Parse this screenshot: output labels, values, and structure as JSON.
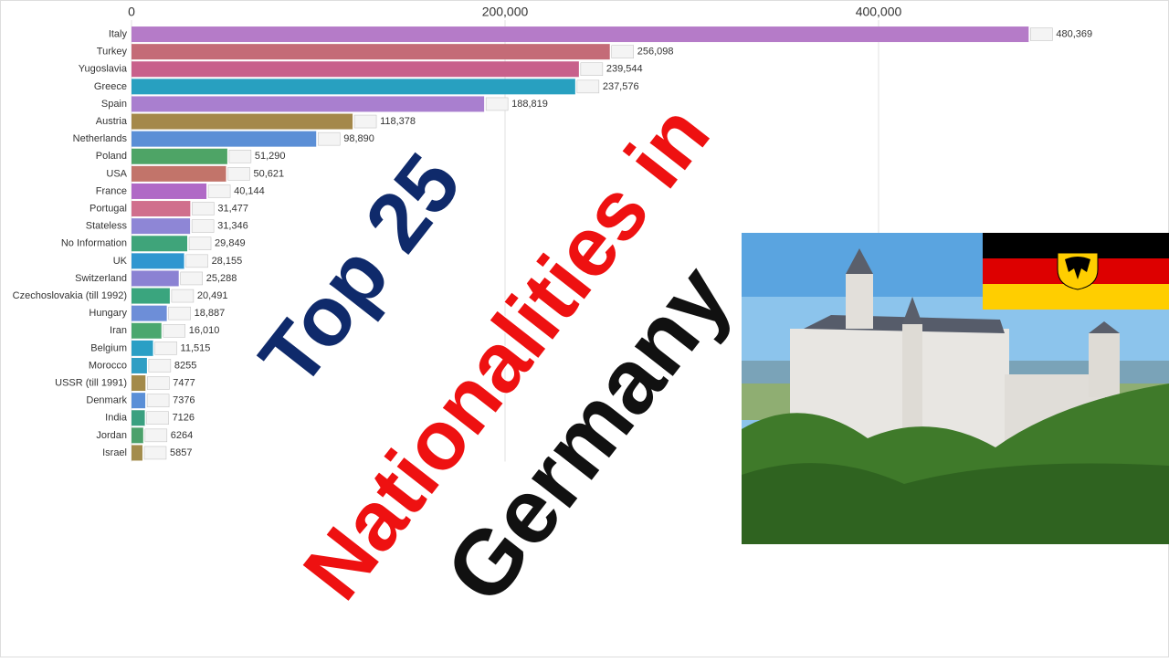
{
  "chart_data": {
    "type": "hbar",
    "categories": [
      "Italy",
      "Turkey",
      "Yugoslavia",
      "Greece",
      "Spain",
      "Austria",
      "Netherlands",
      "Poland",
      "USA",
      "France",
      "Portugal",
      "Stateless",
      "No Information",
      "UK",
      "Switzerland",
      "Czechoslovakia (till 1992)",
      "Hungary",
      "Iran",
      "Belgium",
      "Morocco",
      "USSR (till 1991)",
      "Denmark",
      "India",
      "Jordan",
      "Israel"
    ],
    "values": [
      480369,
      256098,
      239544,
      237576,
      188819,
      118378,
      98890,
      51290,
      50621,
      40144,
      31477,
      31346,
      29849,
      28155,
      25288,
      20491,
      18887,
      16010,
      11515,
      8255,
      7477,
      7376,
      7126,
      6264,
      5857
    ],
    "value_labels": [
      "480,369",
      "256,098",
      "239,544",
      "237,576",
      "188,819",
      "118,378",
      "98,890",
      "51,290",
      "50,621",
      "40,144",
      "31,477",
      "31,346",
      "29,849",
      "28,155",
      "25,288",
      "20,491",
      "18,887",
      "16,010",
      "11,515",
      "8255",
      "7477",
      "7376",
      "7126",
      "6264",
      "5857"
    ],
    "colors": [
      "#b57bc8",
      "#c46b77",
      "#c8608b",
      "#28a0c0",
      "#a97fcf",
      "#a4884a",
      "#5b8fd6",
      "#4ea466",
      "#c2746a",
      "#b069c6",
      "#d06f8d",
      "#8e86d6",
      "#3fa47a",
      "#2f96d0",
      "#8b82d3",
      "#3aa57e",
      "#6d8ed8",
      "#4aa76e",
      "#2a9fc5",
      "#2f9ec4",
      "#a38a4a",
      "#5a8fd7",
      "#3aa080",
      "#4ca16b",
      "#a38c4c"
    ],
    "xlim": [
      0,
      500000
    ],
    "xticks": [
      0,
      {
        "value": 200000,
        "label": "200,000"
      },
      {
        "value": 400000,
        "label": "400,000"
      }
    ],
    "grid": true,
    "annotations": [
      {
        "text": "Top 25",
        "color": "#0f2a6b"
      },
      {
        "text": "Nationalities in",
        "color": "#ee1111"
      },
      {
        "text": "Germany",
        "color": "#111111"
      }
    ]
  }
}
